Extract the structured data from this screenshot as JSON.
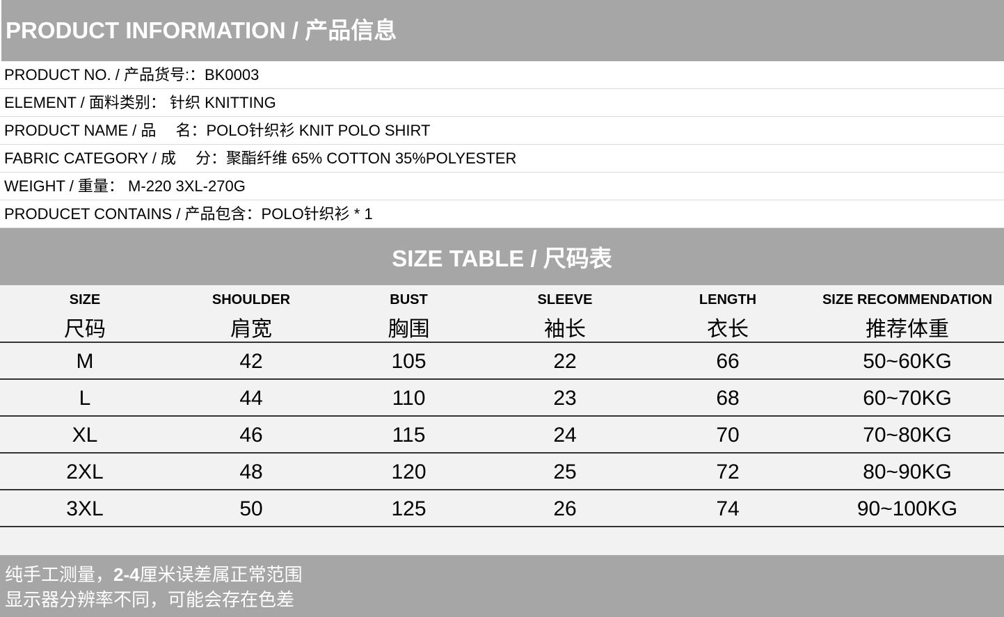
{
  "title": "PRODUCT INFORMATION / 产品信息",
  "info": [
    "PRODUCT NO. / 产品货号:：BK0003",
    "ELEMENT / 面料类别：  针织 KNITTING",
    "PRODUCT NAME / 品　 名：POLO针织衫  KNIT POLO SHIRT",
    "FABRIC CATEGORY / 成　 分：聚酯纤维  65% COTTON  35%POLYESTER",
    "WEIGHT / 重量：  M-220 3XL-270G",
    "PRODUCET CONTAINS / 产品包含：POLO针织衫 * 1"
  ],
  "size_table": {
    "title": "SIZE TABLE / 尺码表",
    "headers": [
      {
        "en": "SIZE",
        "cn": "尺码"
      },
      {
        "en": "SHOULDER",
        "cn": "肩宽"
      },
      {
        "en": "BUST",
        "cn": "胸围"
      },
      {
        "en": "SLEEVE",
        "cn": "袖长"
      },
      {
        "en": "LENGTH",
        "cn": "衣长"
      },
      {
        "en": "SIZE RECOMMENDATION",
        "cn": "推荐体重"
      }
    ],
    "rows": [
      [
        "M",
        "42",
        "105",
        "22",
        "66",
        "50~60KG"
      ],
      [
        "L",
        "44",
        "110",
        "23",
        "68",
        "60~70KG"
      ],
      [
        "XL",
        "46",
        "115",
        "24",
        "70",
        "70~80KG"
      ],
      [
        "2XL",
        "48",
        "120",
        "25",
        "72",
        "80~90KG"
      ],
      [
        "3XL",
        "50",
        "125",
        "26",
        "74",
        "90~100KG"
      ]
    ]
  },
  "footer": {
    "line1_a": "纯手工测量，",
    "line1_b": "2-4",
    "line1_c": "厘米误差属正常范围",
    "line2": "显示器分辨率不同，可能会存在色差"
  },
  "colors": {
    "band": "#a6a6a6",
    "table_bg": "#f2f2f2"
  }
}
